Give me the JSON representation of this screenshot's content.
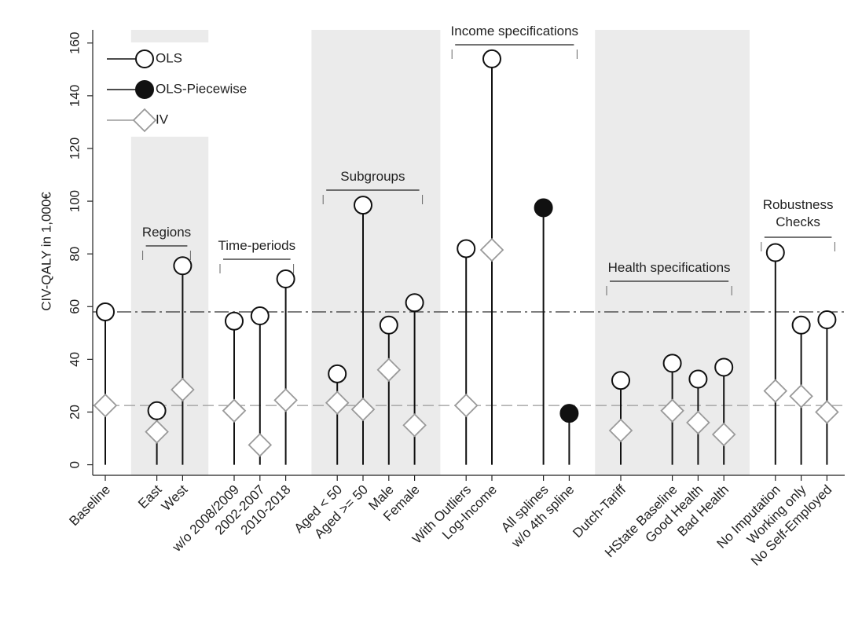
{
  "chart_data": {
    "type": "dot",
    "ylabel": "CIV-QALY in 1,000€",
    "categories": [
      "Baseline",
      null,
      "East",
      "West",
      null,
      "w/o 2008/2009",
      "2002-2007",
      "2010-2018",
      null,
      "Aged < 50",
      "Aged >= 50",
      "Male",
      "Female",
      null,
      "With Outliers",
      "Log-Income",
      null,
      "All splines",
      "w/o 4th spline",
      null,
      "Dutch-Tariff",
      null,
      "HState Baseline",
      "Good Health",
      "Bad Health",
      null,
      "No Imputation",
      "Working only",
      "No Self-Employed"
    ],
    "series": [
      {
        "name": "OLS",
        "color": "#111111",
        "marker": "hollow-circle",
        "values": [
          58,
          null,
          20.5,
          75.5,
          null,
          54.5,
          56.5,
          70.5,
          null,
          34.5,
          98.5,
          53,
          61.5,
          null,
          82,
          154,
          null,
          null,
          null,
          null,
          32,
          null,
          38.5,
          32.5,
          37,
          null,
          80.5,
          53,
          55
        ]
      },
      {
        "name": "OLS-Piecewise",
        "color": "#111111",
        "marker": "filled-circle",
        "values": [
          null,
          null,
          null,
          null,
          null,
          null,
          null,
          null,
          null,
          null,
          null,
          null,
          null,
          null,
          null,
          null,
          null,
          97.5,
          19.5,
          null,
          null,
          null,
          null,
          null,
          null,
          null,
          null,
          null,
          null
        ]
      },
      {
        "name": "IV",
        "color": "#9a9a9a",
        "marker": "hollow-diamond",
        "values": [
          22.5,
          null,
          12.5,
          28.5,
          null,
          20.5,
          7.5,
          24.5,
          null,
          23.5,
          21,
          36,
          15,
          null,
          22.5,
          81.5,
          null,
          null,
          null,
          null,
          13,
          null,
          20.5,
          16,
          11.5,
          null,
          28,
          26,
          20
        ]
      }
    ],
    "groups": [
      {
        "label": "Regions",
        "span": [
          2,
          3
        ],
        "shaded": true
      },
      {
        "label": "Time-periods",
        "span": [
          5,
          7
        ],
        "shaded": false
      },
      {
        "label": "Subgroups",
        "span": [
          9,
          12
        ],
        "shaded": true
      },
      {
        "label": "Income specifications",
        "span": [
          14,
          18
        ],
        "shaded": false
      },
      {
        "label": "Health specifications",
        "span": [
          20,
          24
        ],
        "shaded": true
      },
      {
        "label": "Robustness Checks",
        "span": [
          26,
          28
        ],
        "shaded": false
      }
    ],
    "baseline_lines": true,
    "ylim": [
      -4,
      165
    ],
    "yticks": [
      0,
      20,
      40,
      60,
      80,
      100,
      120,
      140,
      160
    ],
    "legend": "top-left"
  }
}
